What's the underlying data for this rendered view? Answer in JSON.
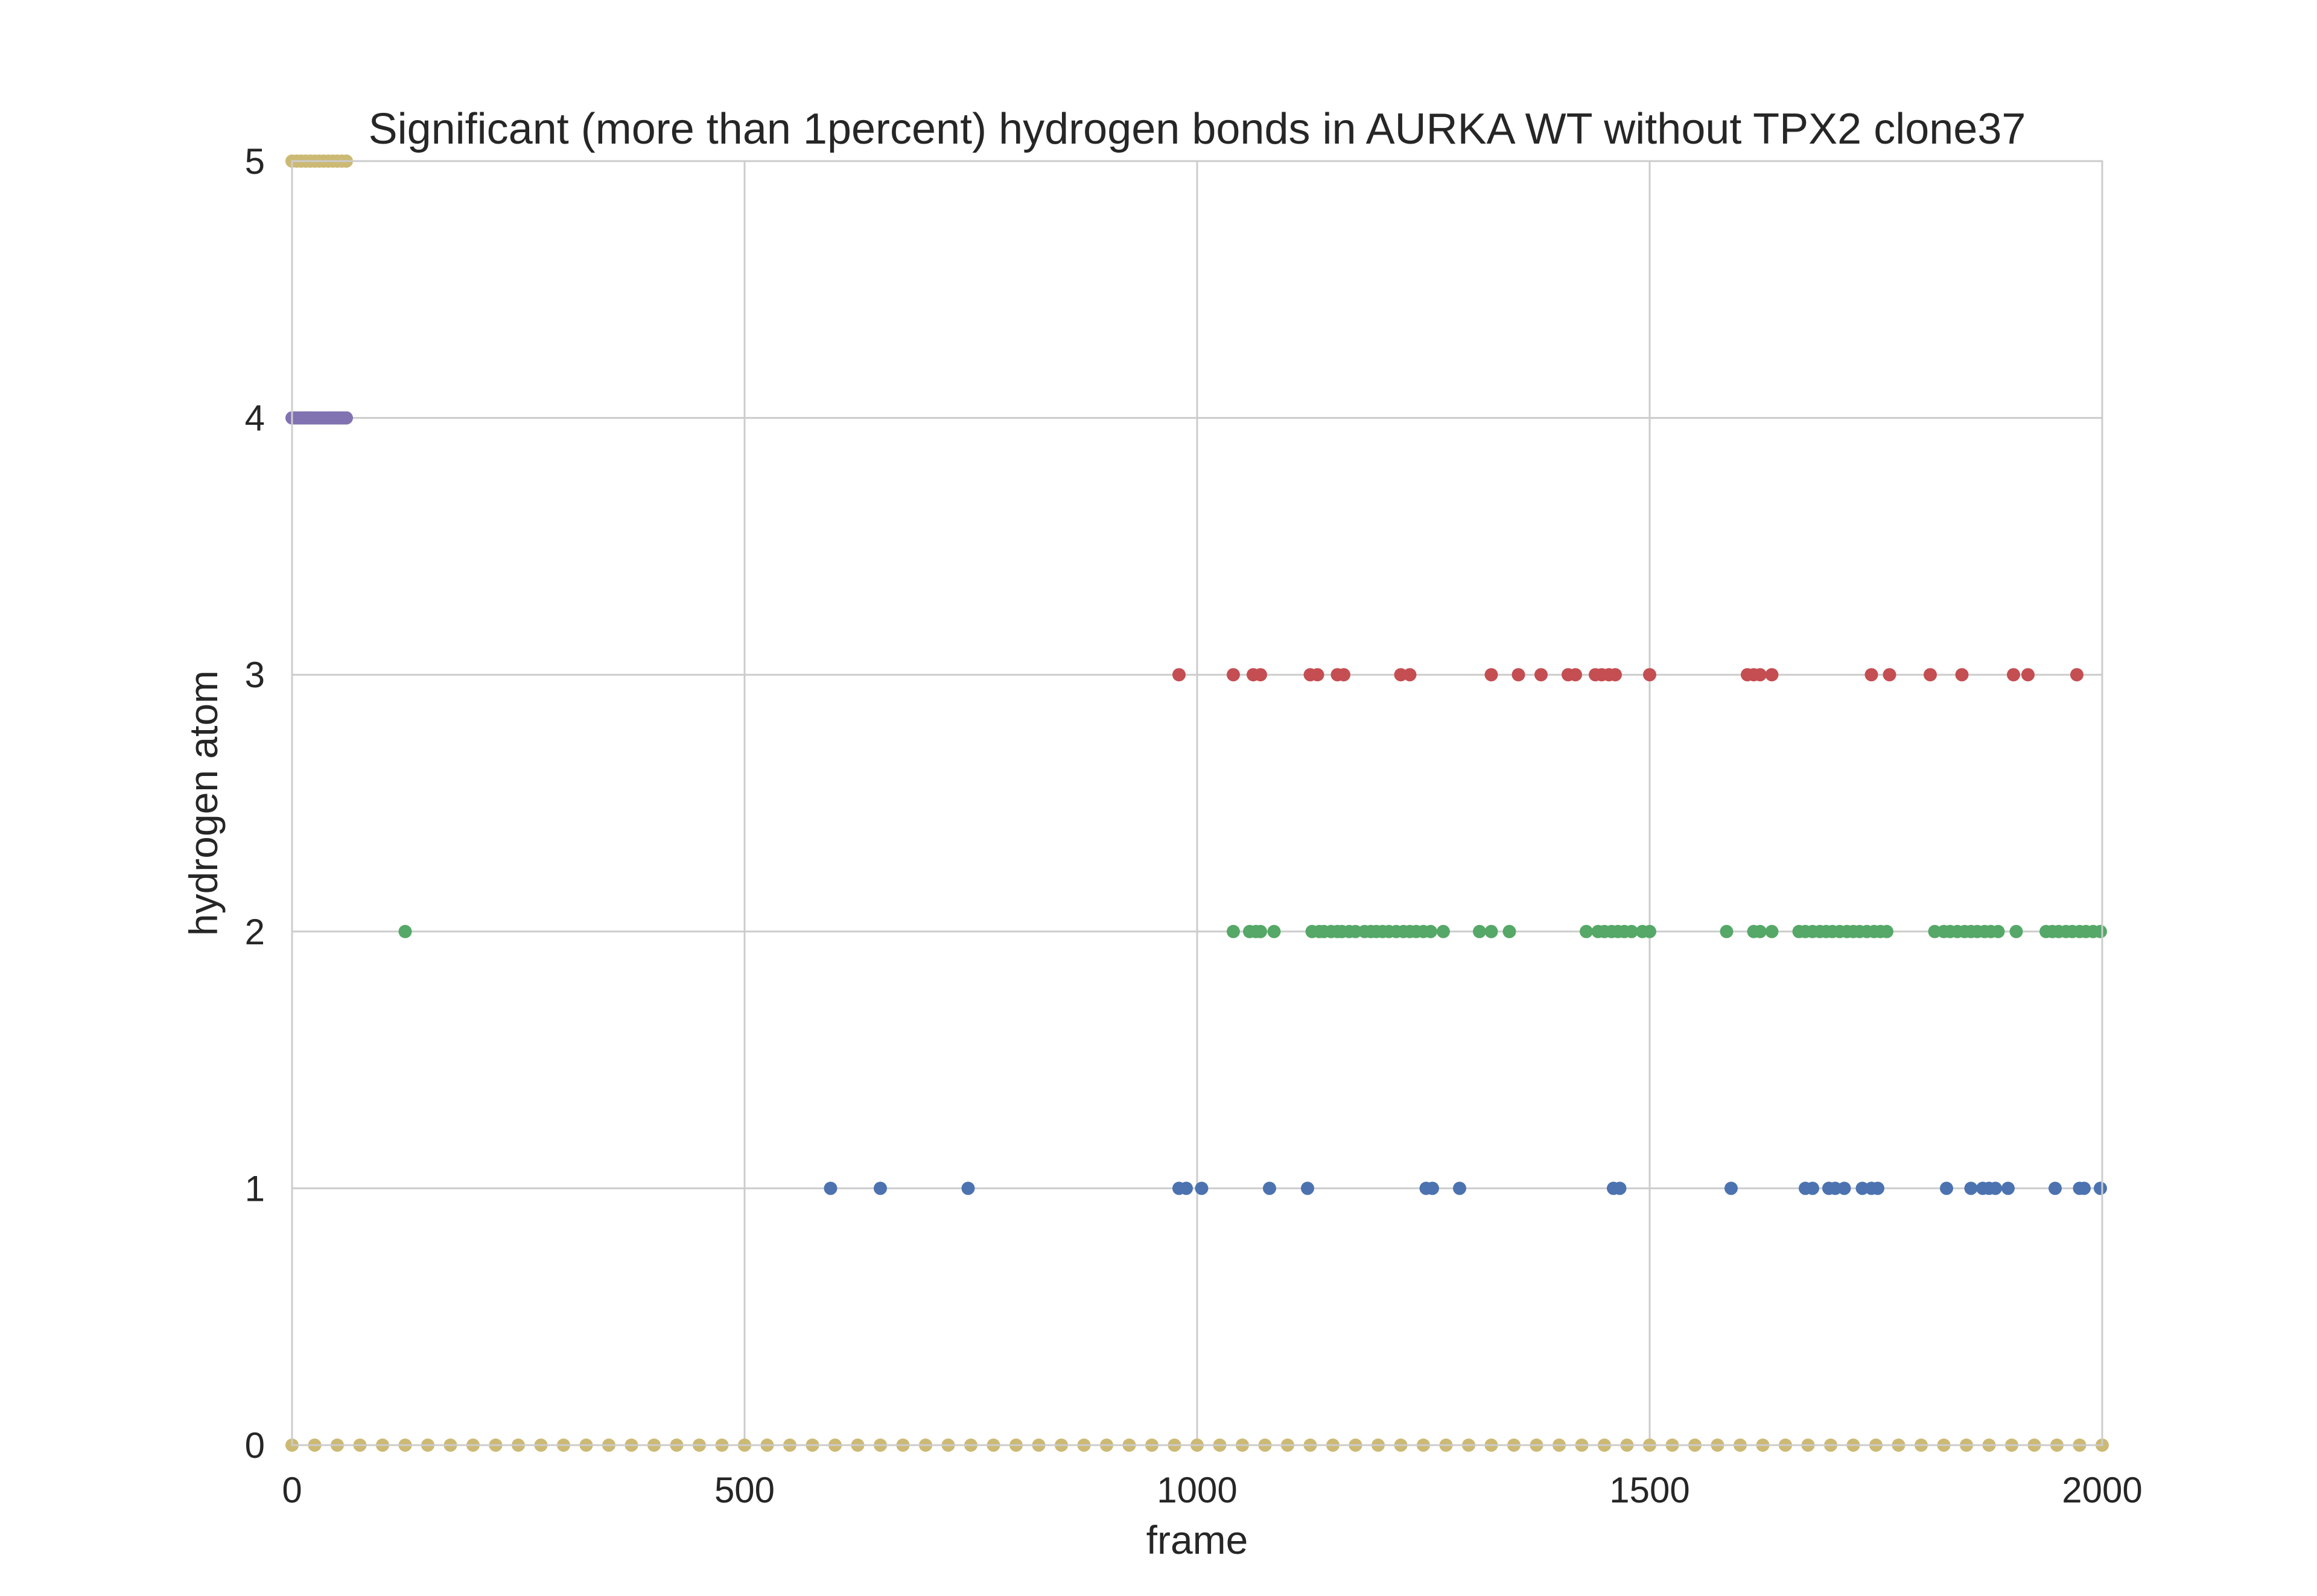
{
  "chart_data": {
    "type": "scatter",
    "title": "Significant (more than 1percent) hydrogen bonds in AURKA WT without TPX2 clone37",
    "xlabel": "frame",
    "ylabel": "hydrogen atom",
    "xlim": [
      0,
      2000
    ],
    "ylim": [
      0,
      5
    ],
    "xticks": [
      0,
      500,
      1000,
      1500,
      2000
    ],
    "yticks": [
      0,
      1,
      2,
      3,
      4,
      5
    ],
    "grid": true,
    "legend": "none",
    "series": [
      {
        "y": 0,
        "color": "#ccb974",
        "x": [
          0,
          25,
          50,
          75,
          100,
          125,
          150,
          175,
          200,
          225,
          250,
          275,
          300,
          325,
          350,
          375,
          400,
          425,
          450,
          475,
          500,
          525,
          550,
          575,
          600,
          625,
          650,
          675,
          700,
          725,
          750,
          775,
          800,
          825,
          850,
          875,
          900,
          925,
          950,
          975,
          1000,
          1025,
          1050,
          1075,
          1100,
          1125,
          1150,
          1175,
          1200,
          1225,
          1250,
          1275,
          1300,
          1325,
          1350,
          1375,
          1400,
          1425,
          1450,
          1475,
          1500,
          1525,
          1550,
          1575,
          1600,
          1625,
          1650,
          1675,
          1700,
          1725,
          1750,
          1775,
          1800,
          1825,
          1850,
          1875,
          1900,
          1925,
          1950,
          1975,
          2000
        ]
      },
      {
        "y": 1,
        "color": "#4c72b0",
        "x": [
          595,
          650,
          747,
          980,
          988,
          1005,
          1080,
          1122,
          1253,
          1260,
          1290,
          1460,
          1467,
          1590,
          1672,
          1680,
          1698,
          1705,
          1715,
          1735,
          1745,
          1752,
          1828,
          1855,
          1868,
          1875,
          1882,
          1896,
          1948,
          1975,
          1980,
          1998
        ]
      },
      {
        "y": 2,
        "color": "#55a868",
        "x": [
          125,
          1040,
          1058,
          1065,
          1070,
          1085,
          1127,
          1135,
          1140,
          1148,
          1155,
          1160,
          1168,
          1175,
          1185,
          1192,
          1198,
          1205,
          1212,
          1220,
          1228,
          1235,
          1242,
          1250,
          1258,
          1272,
          1312,
          1325,
          1345,
          1430,
          1443,
          1450,
          1458,
          1465,
          1472,
          1480,
          1492,
          1500,
          1585,
          1615,
          1622,
          1635,
          1665,
          1672,
          1680,
          1688,
          1695,
          1702,
          1710,
          1718,
          1725,
          1732,
          1740,
          1748,
          1755,
          1762,
          1815,
          1825,
          1832,
          1840,
          1848,
          1855,
          1862,
          1870,
          1877,
          1885,
          1905,
          1938,
          1945,
          1952,
          1960,
          1967,
          1975,
          1982,
          1990,
          1998
        ]
      },
      {
        "y": 3,
        "color": "#c44e52",
        "x": [
          980,
          1040,
          1062,
          1070,
          1125,
          1133,
          1155,
          1162,
          1225,
          1235,
          1325,
          1355,
          1380,
          1410,
          1418,
          1440,
          1447,
          1455,
          1462,
          1500,
          1608,
          1615,
          1622,
          1635,
          1745,
          1765,
          1810,
          1845,
          1902,
          1918,
          1972
        ]
      },
      {
        "y": 4,
        "color": "#8172b2",
        "x": [
          0,
          3,
          6,
          9,
          12,
          15,
          18,
          21,
          24,
          27,
          30,
          33,
          36,
          39,
          42,
          45,
          48,
          51,
          54,
          57,
          60
        ]
      },
      {
        "y": 5,
        "color": "#ccb974",
        "x": [
          0,
          5,
          10,
          15,
          20,
          25,
          30,
          35,
          40,
          45,
          50,
          55,
          60
        ]
      }
    ]
  }
}
